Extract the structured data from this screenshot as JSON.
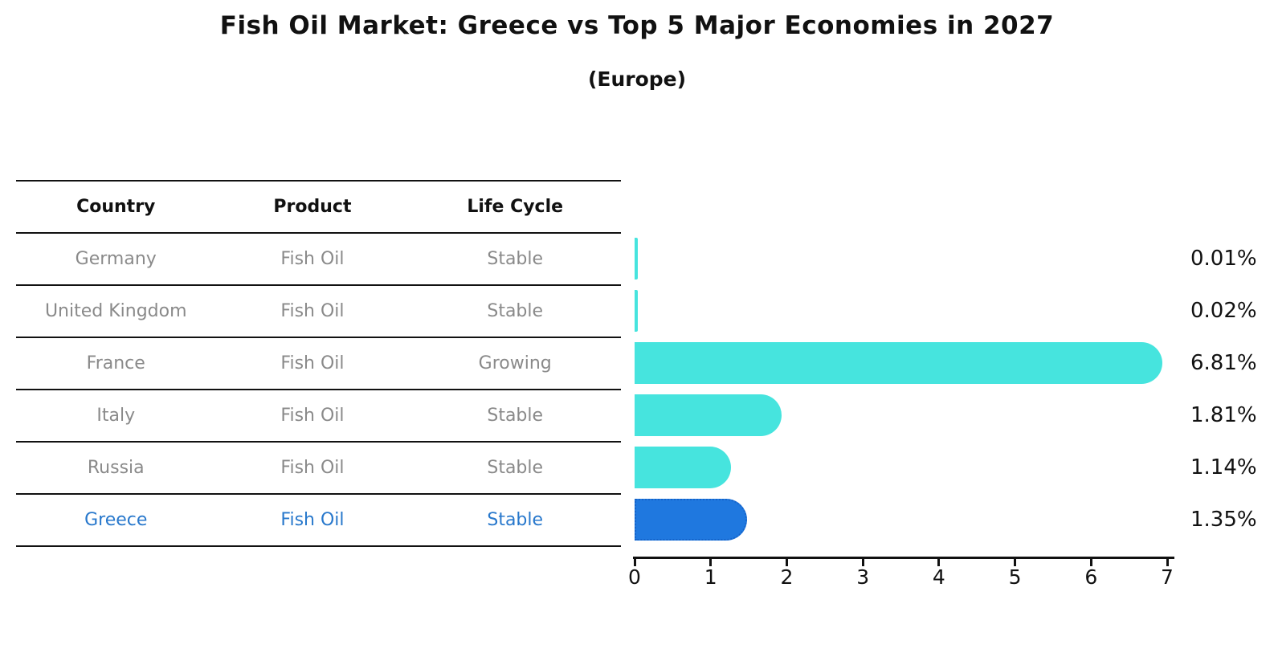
{
  "title": "Fish Oil Market: Greece vs Top 5 Major Economies in 2027",
  "subtitle": "(Europe)",
  "table": {
    "headers": [
      "Country",
      "Product",
      "Life Cycle"
    ],
    "rows": [
      {
        "country": "Germany",
        "product": "Fish Oil",
        "life_cycle": "Stable"
      },
      {
        "country": "United Kingdom",
        "product": "Fish Oil",
        "life_cycle": "Stable"
      },
      {
        "country": "France",
        "product": "Fish Oil",
        "life_cycle": "Growing"
      },
      {
        "country": "Italy",
        "product": "Fish Oil",
        "life_cycle": "Stable"
      },
      {
        "country": "Russia",
        "product": "Fish Oil",
        "life_cycle": "Stable"
      },
      {
        "country": "Greece",
        "product": "Fish Oil",
        "life_cycle": "Stable"
      }
    ],
    "highlight_row": "Greece",
    "highlight_text_color": "#2878cc",
    "normal_text_color": "#8a8a8a"
  },
  "chart_data": {
    "type": "bar",
    "orientation": "horizontal",
    "title": "Fish Oil Market: Greece vs Top 5 Major Economies in 2027",
    "subtitle": "(Europe)",
    "categories": [
      "Germany",
      "United Kingdom",
      "France",
      "Italy",
      "Russia",
      "Greece"
    ],
    "values": [
      0.01,
      0.02,
      6.81,
      1.81,
      1.14,
      1.35
    ],
    "value_labels": [
      "0.01%",
      "0.02%",
      "6.81%",
      "1.81%",
      "1.14%",
      "1.35%"
    ],
    "xlabel": "",
    "ylabel": "",
    "xlim": [
      0,
      7
    ],
    "x_ticks": [
      "0",
      "1",
      "2",
      "3",
      "4",
      "5",
      "6",
      "7"
    ],
    "grid": false,
    "legend": "none",
    "bar_color": "#46e4de",
    "highlight_index": 5,
    "highlight_color": "#1f78df",
    "highlight_border_color": "#1563c9"
  }
}
